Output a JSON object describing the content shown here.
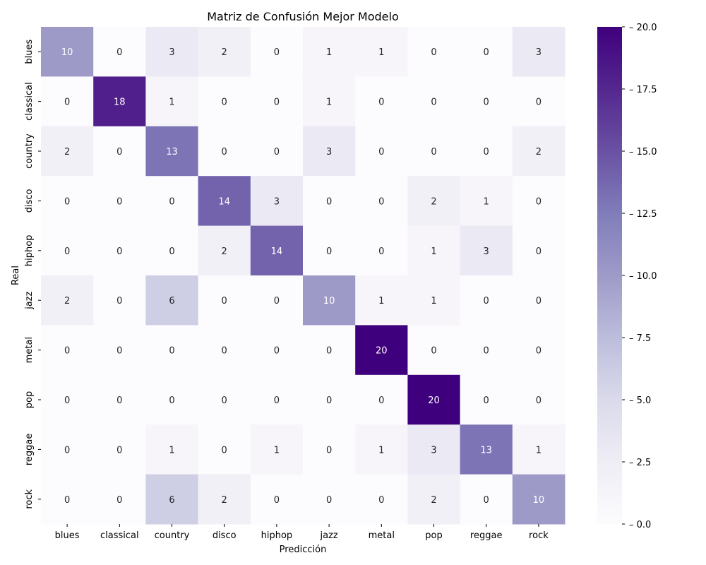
{
  "chart_data": {
    "type": "heatmap",
    "title": "Matriz de Confusión Mejor Modelo",
    "xlabel": "Predicción",
    "ylabel": "Real",
    "x_categories": [
      "blues",
      "classical",
      "country",
      "disco",
      "hiphop",
      "jazz",
      "metal",
      "pop",
      "reggae",
      "rock"
    ],
    "y_categories": [
      "blues",
      "classical",
      "country",
      "disco",
      "hiphop",
      "jazz",
      "metal",
      "pop",
      "reggae",
      "rock"
    ],
    "values": [
      [
        10,
        0,
        3,
        2,
        0,
        1,
        1,
        0,
        0,
        3
      ],
      [
        0,
        18,
        1,
        0,
        0,
        1,
        0,
        0,
        0,
        0
      ],
      [
        2,
        0,
        13,
        0,
        0,
        3,
        0,
        0,
        0,
        2
      ],
      [
        0,
        0,
        0,
        14,
        3,
        0,
        0,
        2,
        1,
        0
      ],
      [
        0,
        0,
        0,
        2,
        14,
        0,
        0,
        1,
        3,
        0
      ],
      [
        2,
        0,
        6,
        0,
        0,
        10,
        1,
        1,
        0,
        0
      ],
      [
        0,
        0,
        0,
        0,
        0,
        0,
        20,
        0,
        0,
        0
      ],
      [
        0,
        0,
        0,
        0,
        0,
        0,
        0,
        20,
        0,
        0
      ],
      [
        0,
        0,
        1,
        0,
        1,
        0,
        1,
        3,
        13,
        1
      ],
      [
        0,
        0,
        6,
        2,
        0,
        0,
        0,
        2,
        0,
        10
      ]
    ],
    "colormap": "Purples",
    "colorbar": {
      "range": [
        0,
        20
      ],
      "ticks": [
        "0.0",
        "2.5",
        "5.0",
        "7.5",
        "10.0",
        "12.5",
        "15.0",
        "17.5",
        "20.0"
      ]
    }
  }
}
